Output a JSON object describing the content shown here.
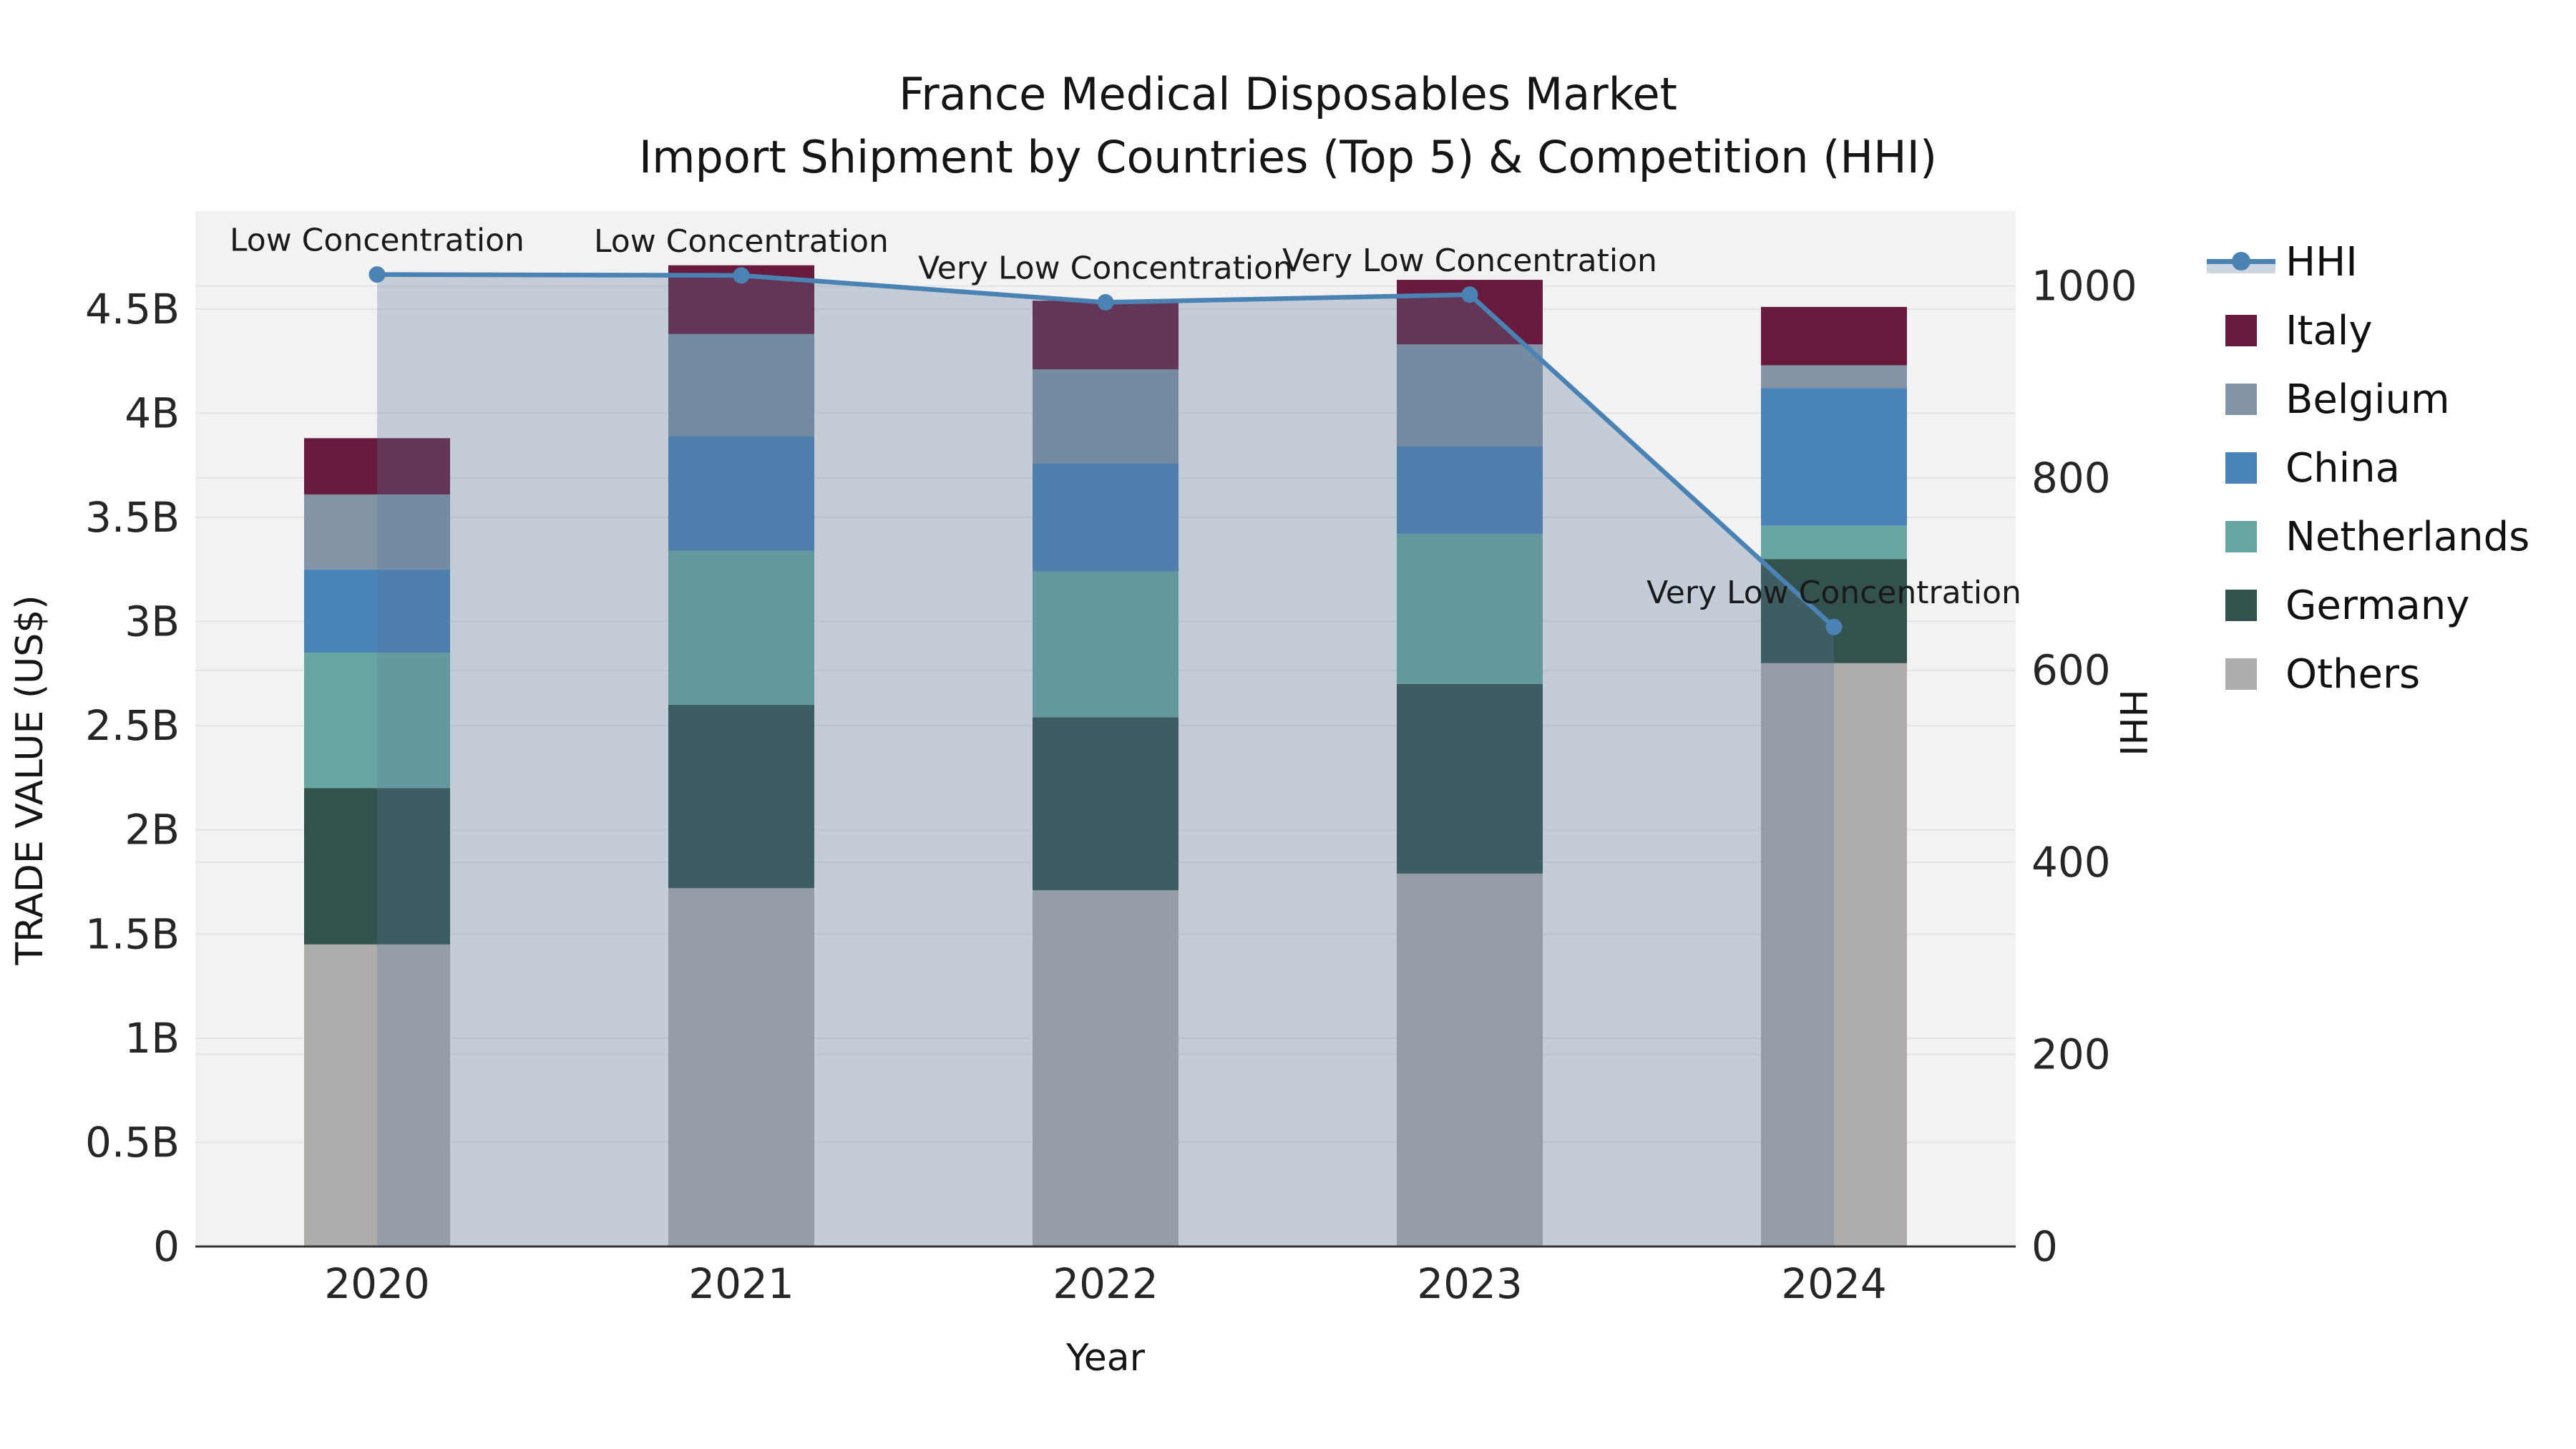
{
  "title": {
    "line1": "France Medical Disposables Market",
    "line2": "Import Shipment by Countries (Top 5) & Competition (HHI)"
  },
  "axes": {
    "xlabel": "Year",
    "ylabel_left": "TRADE VALUE (US$)",
    "ylabel_right": "HHI"
  },
  "colors": {
    "plot_bg": "#f2f2f3",
    "grid": "#e3e3e5",
    "spine": "#333333",
    "tick_text": "#262626",
    "hhi_line": "#4a82b4",
    "hhi_fill": "rgba(88,118,152,0.30)",
    "italy": "#681b3c",
    "belgium": "#8294a6",
    "china": "#4a83b7",
    "netherlands": "#68a6a2",
    "germany": "#33524d",
    "others": "#aeadab"
  },
  "legend": {
    "items": [
      {
        "label": "HHI",
        "key": "hhi",
        "type": "line"
      },
      {
        "label": "Italy",
        "key": "italy",
        "type": "patch"
      },
      {
        "label": "Belgium",
        "key": "belgium",
        "type": "patch"
      },
      {
        "label": "China",
        "key": "china",
        "type": "patch"
      },
      {
        "label": "Netherlands",
        "key": "netherlands",
        "type": "patch"
      },
      {
        "label": "Germany",
        "key": "germany",
        "type": "patch"
      },
      {
        "label": "Others",
        "key": "others",
        "type": "patch"
      }
    ]
  },
  "chart_data": {
    "type": "bar+line",
    "categories": [
      "2020",
      "2021",
      "2022",
      "2023",
      "2024"
    ],
    "stack_order_bottom_to_top": [
      "Others",
      "Germany",
      "Netherlands",
      "China",
      "Belgium",
      "Italy"
    ],
    "series": [
      {
        "name": "Others",
        "key": "others",
        "values": [
          1.45,
          1.72,
          1.71,
          1.79,
          2.8
        ]
      },
      {
        "name": "Germany",
        "key": "germany",
        "values": [
          0.75,
          0.88,
          0.83,
          0.91,
          0.5
        ]
      },
      {
        "name": "Netherlands",
        "key": "netherlands",
        "values": [
          0.65,
          0.74,
          0.7,
          0.72,
          0.16
        ]
      },
      {
        "name": "China",
        "key": "china",
        "values": [
          0.4,
          0.55,
          0.52,
          0.42,
          0.66
        ]
      },
      {
        "name": "Belgium",
        "key": "belgium",
        "values": [
          0.36,
          0.49,
          0.45,
          0.49,
          0.11
        ]
      },
      {
        "name": "Italy",
        "key": "italy",
        "values": [
          0.27,
          0.33,
          0.33,
          0.31,
          0.28
        ]
      }
    ],
    "bar_totals": [
      3.88,
      4.71,
      4.54,
      4.64,
      4.51
    ],
    "line_series": {
      "name": "HHI",
      "values": [
        1012,
        1011,
        983,
        991,
        645
      ],
      "axis": "right"
    },
    "annotations": [
      {
        "x": "2020",
        "text": "Low Concentration"
      },
      {
        "x": "2021",
        "text": "Low Concentration"
      },
      {
        "x": "2022",
        "text": "Very Low Concentration"
      },
      {
        "x": "2023",
        "text": "Very Low Concentration"
      },
      {
        "x": "2024",
        "text": "Very Low Concentration"
      }
    ],
    "yticks_left": [
      {
        "v": 0,
        "label": "0"
      },
      {
        "v": 0.5,
        "label": "0.5B"
      },
      {
        "v": 1,
        "label": "1B"
      },
      {
        "v": 1.5,
        "label": "1.5B"
      },
      {
        "v": 2,
        "label": "2B"
      },
      {
        "v": 2.5,
        "label": "2.5B"
      },
      {
        "v": 3,
        "label": "3B"
      },
      {
        "v": 3.5,
        "label": "3.5B"
      },
      {
        "v": 4,
        "label": "4B"
      },
      {
        "v": 4.5,
        "label": "4.5B"
      }
    ],
    "yticks_right": [
      {
        "v": 0,
        "label": "0"
      },
      {
        "v": 200,
        "label": "200"
      },
      {
        "v": 400,
        "label": "400"
      },
      {
        "v": 600,
        "label": "600"
      },
      {
        "v": 800,
        "label": "800"
      },
      {
        "v": 1000,
        "label": "1000"
      }
    ],
    "ylim_left": [
      0,
      4.97
    ],
    "ylim_right": [
      0,
      1078
    ],
    "grid": "horizontal",
    "legend_position": "right-outside"
  }
}
